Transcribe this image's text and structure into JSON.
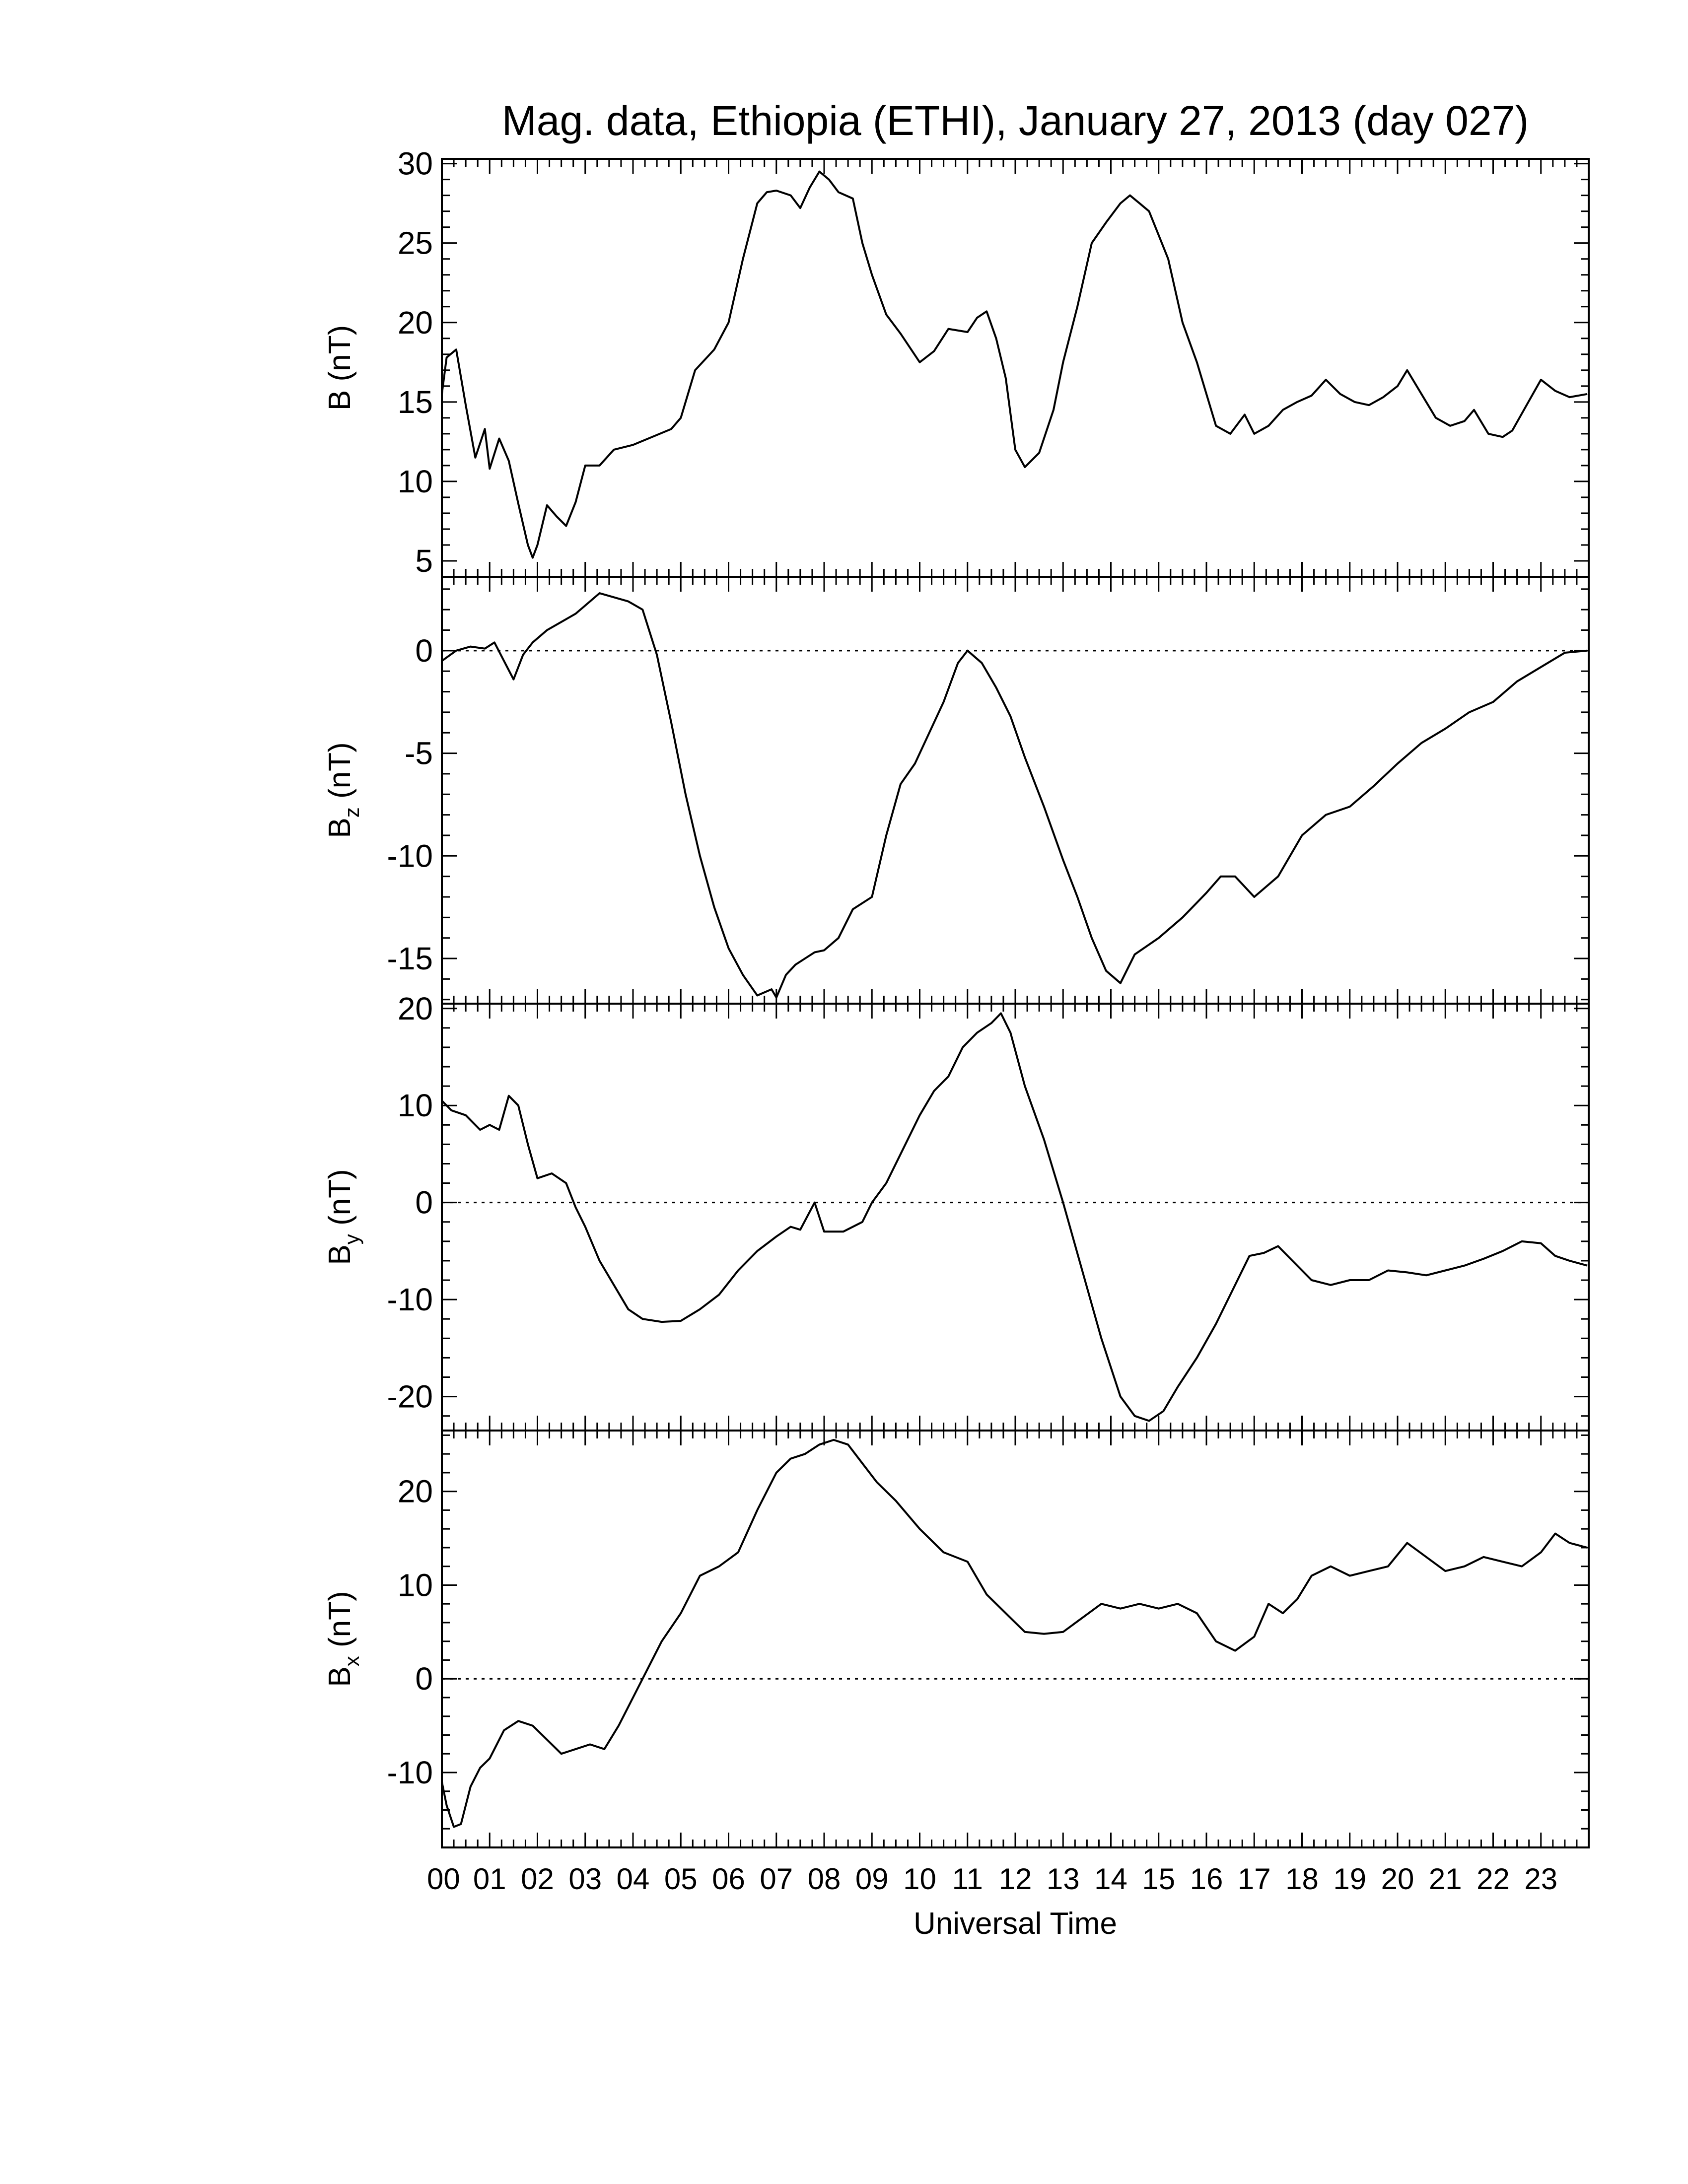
{
  "title": "Mag. data, Ethiopia (ETHI), January 27, 2013 (day 027)",
  "xlabel": "Universal Time",
  "x_tick_labels": [
    "00",
    "01",
    "02",
    "03",
    "04",
    "05",
    "06",
    "07",
    "08",
    "09",
    "10",
    "11",
    "12",
    "13",
    "14",
    "15",
    "16",
    "17",
    "18",
    "19",
    "20",
    "21",
    "22",
    "23"
  ],
  "chart_data": [
    {
      "type": "line",
      "name": "B",
      "ylabel": "B (nT)",
      "ylabel_main": "B",
      "ylabel_sub": "",
      "ylabel_unit": "(nT)",
      "ylim": [
        4,
        30.3
      ],
      "yticks": [
        5,
        10,
        15,
        20,
        25,
        30
      ],
      "zero_line": false,
      "x": [
        0,
        0.1,
        0.3,
        0.5,
        0.7,
        0.9,
        1.0,
        1.2,
        1.4,
        1.6,
        1.8,
        1.9,
        2.0,
        2.2,
        2.4,
        2.6,
        2.8,
        3.0,
        3.3,
        3.6,
        4.0,
        4.4,
        4.8,
        5.0,
        5.3,
        5.7,
        6.0,
        6.3,
        6.6,
        6.8,
        7.0,
        7.3,
        7.5,
        7.7,
        7.9,
        8.1,
        8.3,
        8.6,
        8.8,
        9.0,
        9.3,
        9.6,
        10.0,
        10.3,
        10.6,
        11.0,
        11.2,
        11.4,
        11.6,
        11.8,
        12.0,
        12.2,
        12.5,
        12.8,
        13.0,
        13.3,
        13.6,
        13.9,
        14.2,
        14.4,
        14.6,
        14.8,
        15.0,
        15.2,
        15.5,
        15.8,
        16.0,
        16.2,
        16.5,
        16.8,
        17.0,
        17.3,
        17.6,
        17.9,
        18.2,
        18.5,
        18.8,
        19.1,
        19.4,
        19.7,
        20.0,
        20.2,
        20.5,
        20.8,
        21.1,
        21.4,
        21.6,
        21.9,
        22.2,
        22.4,
        22.7,
        23.0,
        23.3,
        23.6,
        23.97
      ],
      "values": [
        15.5,
        17.8,
        18.3,
        14.8,
        11.5,
        13.3,
        10.8,
        12.7,
        11.3,
        8.6,
        6.0,
        5.2,
        6.0,
        8.5,
        7.8,
        7.2,
        8.7,
        11.0,
        11.0,
        12.0,
        12.3,
        12.8,
        13.3,
        14.0,
        17.0,
        18.3,
        20.0,
        24.0,
        27.5,
        28.2,
        28.3,
        28.0,
        27.2,
        28.5,
        29.5,
        29.0,
        28.2,
        27.8,
        25.0,
        23.0,
        20.5,
        19.3,
        17.5,
        18.2,
        19.6,
        19.4,
        20.3,
        20.7,
        19.0,
        16.5,
        12.0,
        10.9,
        11.8,
        14.5,
        17.5,
        21.0,
        25.0,
        26.3,
        27.5,
        28.0,
        27.5,
        27.0,
        25.5,
        24.0,
        20.0,
        17.5,
        15.5,
        13.5,
        13.0,
        14.2,
        13.0,
        13.5,
        14.5,
        15.0,
        15.4,
        16.4,
        15.5,
        15.0,
        14.8,
        15.3,
        16.0,
        17.0,
        15.5,
        14.0,
        13.5,
        13.8,
        14.5,
        13.0,
        12.8,
        13.2,
        14.8,
        16.4,
        15.7,
        15.3,
        15.5
      ]
    },
    {
      "type": "line",
      "name": "Bz",
      "ylabel": "Bz (nT)",
      "ylabel_main": "B",
      "ylabel_sub": "z",
      "ylabel_unit": "(nT)",
      "ylim": [
        -17.2,
        3.6
      ],
      "yticks": [
        0,
        -5,
        -10,
        -15
      ],
      "zero_line": true,
      "x": [
        0,
        0.3,
        0.6,
        0.9,
        1.1,
        1.3,
        1.5,
        1.7,
        1.9,
        2.2,
        2.5,
        2.8,
        3.0,
        3.3,
        3.6,
        3.9,
        4.2,
        4.5,
        4.8,
        5.1,
        5.4,
        5.7,
        6.0,
        6.3,
        6.6,
        6.9,
        7.0,
        7.2,
        7.4,
        7.6,
        7.8,
        8.0,
        8.3,
        8.6,
        9.0,
        9.3,
        9.6,
        9.9,
        10.2,
        10.5,
        10.8,
        11.0,
        11.3,
        11.6,
        11.9,
        12.2,
        12.6,
        13.0,
        13.3,
        13.6,
        13.9,
        14.2,
        14.5,
        15.0,
        15.5,
        16.0,
        16.3,
        16.6,
        17.0,
        17.5,
        18.0,
        18.5,
        19.0,
        19.5,
        20.0,
        20.5,
        21.0,
        21.5,
        22.0,
        22.5,
        23.0,
        23.5,
        23.97
      ],
      "values": [
        -0.5,
        0.0,
        0.2,
        0.1,
        0.4,
        -0.5,
        -1.4,
        -0.2,
        0.4,
        1.0,
        1.4,
        1.8,
        2.2,
        2.8,
        2.6,
        2.4,
        2.0,
        -0.2,
        -3.5,
        -7.0,
        -10.0,
        -12.5,
        -14.5,
        -15.8,
        -16.8,
        -16.5,
        -16.9,
        -15.8,
        -15.3,
        -15.0,
        -14.7,
        -14.6,
        -14.0,
        -12.6,
        -12.0,
        -9.0,
        -6.5,
        -5.5,
        -4.0,
        -2.5,
        -0.6,
        0.0,
        -0.6,
        -1.8,
        -3.2,
        -5.2,
        -7.6,
        -10.2,
        -12.0,
        -14.0,
        -15.6,
        -16.2,
        -14.8,
        -14.0,
        -13.0,
        -11.8,
        -11.0,
        -11.0,
        -12.0,
        -11.0,
        -9.0,
        -8.0,
        -7.6,
        -6.6,
        -5.5,
        -4.5,
        -3.8,
        -3.0,
        -2.5,
        -1.5,
        -0.8,
        -0.1,
        0.0
      ]
    },
    {
      "type": "line",
      "name": "By",
      "ylabel": "By (nT)",
      "ylabel_main": "B",
      "ylabel_sub": "y",
      "ylabel_unit": "(nT)",
      "ylim": [
        -23.5,
        20.5
      ],
      "yticks": [
        20,
        10,
        0,
        -10,
        -20
      ],
      "zero_line": true,
      "x": [
        0,
        0.2,
        0.5,
        0.8,
        1.0,
        1.2,
        1.4,
        1.6,
        1.8,
        2.0,
        2.3,
        2.6,
        2.8,
        3.0,
        3.3,
        3.6,
        3.9,
        4.2,
        4.6,
        5.0,
        5.4,
        5.8,
        6.2,
        6.6,
        7.0,
        7.3,
        7.5,
        7.8,
        8.0,
        8.4,
        8.8,
        9.0,
        9.3,
        9.6,
        10.0,
        10.3,
        10.6,
        10.9,
        11.2,
        11.5,
        11.7,
        11.9,
        12.2,
        12.6,
        13.0,
        13.4,
        13.8,
        14.2,
        14.5,
        14.8,
        15.1,
        15.4,
        15.8,
        16.2,
        16.6,
        16.9,
        17.2,
        17.5,
        17.8,
        18.2,
        18.6,
        19.0,
        19.4,
        19.8,
        20.2,
        20.6,
        21.0,
        21.4,
        21.8,
        22.2,
        22.6,
        23.0,
        23.3,
        23.6,
        23.97
      ],
      "values": [
        10.5,
        9.5,
        9.0,
        7.5,
        8.0,
        7.5,
        11.0,
        10.0,
        6.0,
        2.5,
        3.0,
        2.0,
        -0.5,
        -2.5,
        -6.0,
        -8.5,
        -11.0,
        -12.0,
        -12.3,
        -12.2,
        -11.0,
        -9.5,
        -7.0,
        -5.0,
        -3.5,
        -2.5,
        -2.8,
        0.0,
        -3.0,
        -3.0,
        -2.0,
        0.0,
        2.0,
        5.0,
        9.0,
        11.5,
        13.0,
        16.0,
        17.5,
        18.5,
        19.5,
        17.5,
        12.0,
        6.5,
        0.0,
        -7.0,
        -14.0,
        -20.0,
        -22.0,
        -22.5,
        -21.5,
        -19.0,
        -16.0,
        -12.5,
        -8.5,
        -5.5,
        -5.2,
        -4.5,
        -6.0,
        -8.0,
        -8.5,
        -8.0,
        -8.0,
        -7.0,
        -7.2,
        -7.5,
        -7.0,
        -6.5,
        -5.8,
        -5.0,
        -4.0,
        -4.2,
        -5.5,
        -6.0,
        -6.5
      ]
    },
    {
      "type": "line",
      "name": "Bx",
      "ylabel": "Bx (nT)",
      "ylabel_main": "B",
      "ylabel_sub": "x",
      "ylabel_unit": "(nT)",
      "ylim": [
        -18,
        26.5
      ],
      "yticks": [
        20,
        10,
        0,
        -10
      ],
      "zero_line": true,
      "x": [
        0,
        0.1,
        0.25,
        0.4,
        0.6,
        0.8,
        1.0,
        1.3,
        1.6,
        1.9,
        2.2,
        2.5,
        2.8,
        3.1,
        3.4,
        3.7,
        4.0,
        4.3,
        4.6,
        5.0,
        5.4,
        5.8,
        6.2,
        6.6,
        7.0,
        7.3,
        7.6,
        7.9,
        8.2,
        8.5,
        8.8,
        9.1,
        9.5,
        10.0,
        10.5,
        11.0,
        11.4,
        11.8,
        12.2,
        12.6,
        13.0,
        13.4,
        13.8,
        14.2,
        14.6,
        15.0,
        15.4,
        15.8,
        16.2,
        16.6,
        17.0,
        17.3,
        17.6,
        17.9,
        18.2,
        18.6,
        19.0,
        19.4,
        19.8,
        20.2,
        20.6,
        21.0,
        21.4,
        21.8,
        22.2,
        22.6,
        23.0,
        23.3,
        23.6,
        23.97
      ],
      "values": [
        -11.0,
        -13.5,
        -15.8,
        -15.5,
        -11.5,
        -9.5,
        -8.5,
        -5.5,
        -4.5,
        -5.0,
        -6.5,
        -8.0,
        -7.5,
        -7.0,
        -7.5,
        -5.0,
        -2.0,
        1.0,
        4.0,
        7.0,
        11.0,
        12.0,
        13.5,
        18.0,
        22.0,
        23.5,
        24.0,
        25.0,
        25.5,
        25.0,
        23.0,
        21.0,
        19.0,
        16.0,
        13.5,
        12.5,
        9.0,
        7.0,
        5.0,
        4.8,
        5.0,
        6.5,
        8.0,
        7.5,
        8.0,
        7.5,
        8.0,
        7.0,
        4.0,
        3.0,
        4.5,
        8.0,
        7.0,
        8.5,
        11.0,
        12.0,
        11.0,
        11.5,
        12.0,
        14.5,
        13.0,
        11.5,
        12.0,
        13.0,
        12.5,
        12.0,
        13.5,
        15.5,
        14.5,
        14.0
      ]
    }
  ]
}
